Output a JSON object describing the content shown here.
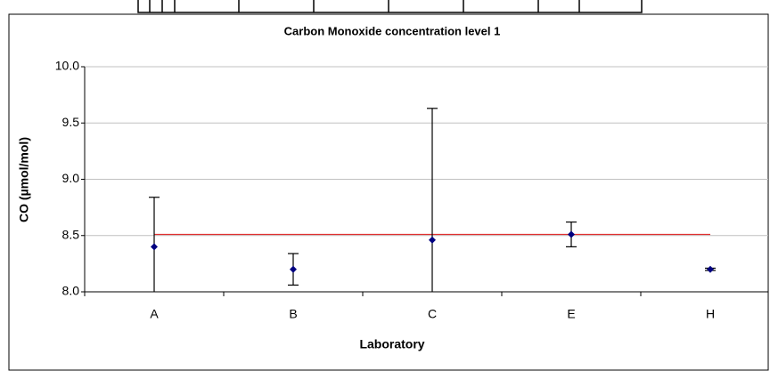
{
  "chart_data": {
    "type": "errorbar",
    "title": "Carbon Monoxide concentration level 1",
    "x_label": "Laboratory",
    "y_label": "CO (µmol/mol)",
    "categories": [
      "A",
      "B",
      "C",
      "E",
      "H"
    ],
    "values": [
      8.4,
      8.2,
      8.46,
      8.51,
      8.2
    ],
    "errors": [
      0.44,
      0.14,
      1.17,
      0.11,
      0.01
    ],
    "color": "#000080",
    "reference_line": {
      "value": 8.51,
      "color": "#e03030"
    },
    "ylim": [
      8.0,
      10.0
    ],
    "yticks": [
      {
        "value": 8.0,
        "label": "8.0"
      },
      {
        "value": 8.5,
        "label": "8.5"
      },
      {
        "value": 9.0,
        "label": "9.0"
      },
      {
        "value": 9.5,
        "label": "9.5"
      },
      {
        "value": 10.0,
        "label": "10.0"
      }
    ],
    "grid": true
  }
}
